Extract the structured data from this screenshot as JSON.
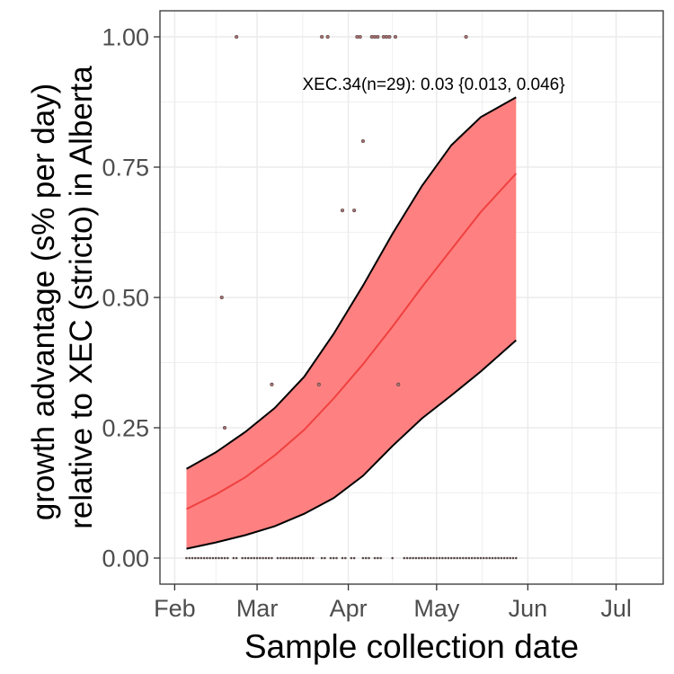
{
  "chart_data": {
    "type": "line",
    "title": "",
    "xlabel": "Sample collection date",
    "ylabel_lines": [
      "growth advantage (s% per day)",
      "relative to XEC (stricto) in Alberta"
    ],
    "x_ticks": [
      {
        "date": "2025-02-01",
        "label": "Feb"
      },
      {
        "date": "2025-03-01",
        "label": "Mar"
      },
      {
        "date": "2025-04-01",
        "label": "Apr"
      },
      {
        "date": "2025-05-01",
        "label": "May"
      },
      {
        "date": "2025-06-01",
        "label": "Jun"
      },
      {
        "date": "2025-07-01",
        "label": "Jul"
      }
    ],
    "xlim": [
      "2025-01-27",
      "2025-07-17"
    ],
    "y_ticks": [
      0.0,
      0.25,
      0.5,
      0.75,
      1.0
    ],
    "y_tick_labels": [
      "0.00",
      "0.25",
      "0.50",
      "0.75",
      "1.00"
    ],
    "ylim": [
      -0.05,
      1.05
    ],
    "grid": true,
    "annotation": {
      "text": "XEC.34(n=29): 0.03 {0.013, 0.046}",
      "date": "2025-04-30",
      "y": 0.91
    },
    "colors": {
      "ribbon": "#ff8080",
      "fit_line": "#f04040",
      "ribbon_border": "#000000",
      "points": "#5a4a4a",
      "grid": "#ebebeb"
    },
    "fit": {
      "dates": [
        "2025-02-05",
        "2025-02-15",
        "2025-02-25",
        "2025-03-07",
        "2025-03-17",
        "2025-03-27",
        "2025-04-06",
        "2025-04-16",
        "2025-04-26",
        "2025-05-06",
        "2025-05-16",
        "2025-05-28"
      ],
      "mean": [
        0.094,
        0.122,
        0.155,
        0.197,
        0.246,
        0.306,
        0.372,
        0.444,
        0.52,
        0.592,
        0.664,
        0.738
      ],
      "lower": [
        0.018,
        0.03,
        0.044,
        0.061,
        0.085,
        0.115,
        0.158,
        0.215,
        0.268,
        0.312,
        0.358,
        0.418
      ],
      "upper": [
        0.171,
        0.203,
        0.242,
        0.288,
        0.348,
        0.43,
        0.523,
        0.622,
        0.714,
        0.792,
        0.846,
        0.884
      ]
    },
    "points": [
      {
        "date": "2025-02-17",
        "y": 0.5
      },
      {
        "date": "2025-02-18",
        "y": 0.25
      },
      {
        "date": "2025-02-22",
        "y": 1.0
      },
      {
        "date": "2025-03-06",
        "y": 0.333
      },
      {
        "date": "2025-03-22",
        "y": 0.333
      },
      {
        "date": "2025-03-23",
        "y": 1.0
      },
      {
        "date": "2025-03-25",
        "y": 1.0
      },
      {
        "date": "2025-03-30",
        "y": 0.667
      },
      {
        "date": "2025-04-03",
        "y": 0.667
      },
      {
        "date": "2025-04-04",
        "y": 1.0
      },
      {
        "date": "2025-04-05",
        "y": 1.0
      },
      {
        "date": "2025-04-06",
        "y": 0.8
      },
      {
        "date": "2025-04-09",
        "y": 1.0
      },
      {
        "date": "2025-04-10",
        "y": 1.0
      },
      {
        "date": "2025-04-11",
        "y": 1.0
      },
      {
        "date": "2025-04-13",
        "y": 1.0
      },
      {
        "date": "2025-04-14",
        "y": 1.0
      },
      {
        "date": "2025-04-15",
        "y": 1.0
      },
      {
        "date": "2025-04-17",
        "y": 1.0
      },
      {
        "date": "2025-04-18",
        "y": 0.333
      },
      {
        "date": "2025-05-11",
        "y": 1.0
      }
    ],
    "zero_point_dates": [
      "2025-02-05",
      "2025-02-06",
      "2025-02-07",
      "2025-02-08",
      "2025-02-09",
      "2025-02-10",
      "2025-02-11",
      "2025-02-12",
      "2025-02-13",
      "2025-02-14",
      "2025-02-15",
      "2025-02-16",
      "2025-02-17",
      "2025-02-18",
      "2025-02-19",
      "2025-02-21",
      "2025-02-22",
      "2025-02-24",
      "2025-02-25",
      "2025-02-26",
      "2025-02-27",
      "2025-02-28",
      "2025-03-01",
      "2025-03-02",
      "2025-03-03",
      "2025-03-04",
      "2025-03-05",
      "2025-03-06",
      "2025-03-08",
      "2025-03-09",
      "2025-03-10",
      "2025-03-11",
      "2025-03-12",
      "2025-03-13",
      "2025-03-14",
      "2025-03-15",
      "2025-03-16",
      "2025-03-17",
      "2025-03-18",
      "2025-03-19",
      "2025-03-20",
      "2025-03-23",
      "2025-03-24",
      "2025-03-26",
      "2025-03-27",
      "2025-03-28",
      "2025-03-30",
      "2025-03-31",
      "2025-04-02",
      "2025-04-03",
      "2025-04-06",
      "2025-04-07",
      "2025-04-08",
      "2025-04-10",
      "2025-04-11",
      "2025-04-12",
      "2025-04-16",
      "2025-04-20",
      "2025-04-21",
      "2025-04-22",
      "2025-04-23",
      "2025-04-24",
      "2025-04-25",
      "2025-04-26",
      "2025-04-27",
      "2025-04-28",
      "2025-04-29",
      "2025-04-30",
      "2025-05-01",
      "2025-05-02",
      "2025-05-03",
      "2025-05-04",
      "2025-05-05",
      "2025-05-06",
      "2025-05-07",
      "2025-05-08",
      "2025-05-09",
      "2025-05-10",
      "2025-05-11",
      "2025-05-12",
      "2025-05-13",
      "2025-05-14",
      "2025-05-15",
      "2025-05-16",
      "2025-05-17",
      "2025-05-18",
      "2025-05-19",
      "2025-05-20",
      "2025-05-21",
      "2025-05-22",
      "2025-05-23",
      "2025-05-24",
      "2025-05-25",
      "2025-05-26",
      "2025-05-27",
      "2025-05-28"
    ]
  }
}
